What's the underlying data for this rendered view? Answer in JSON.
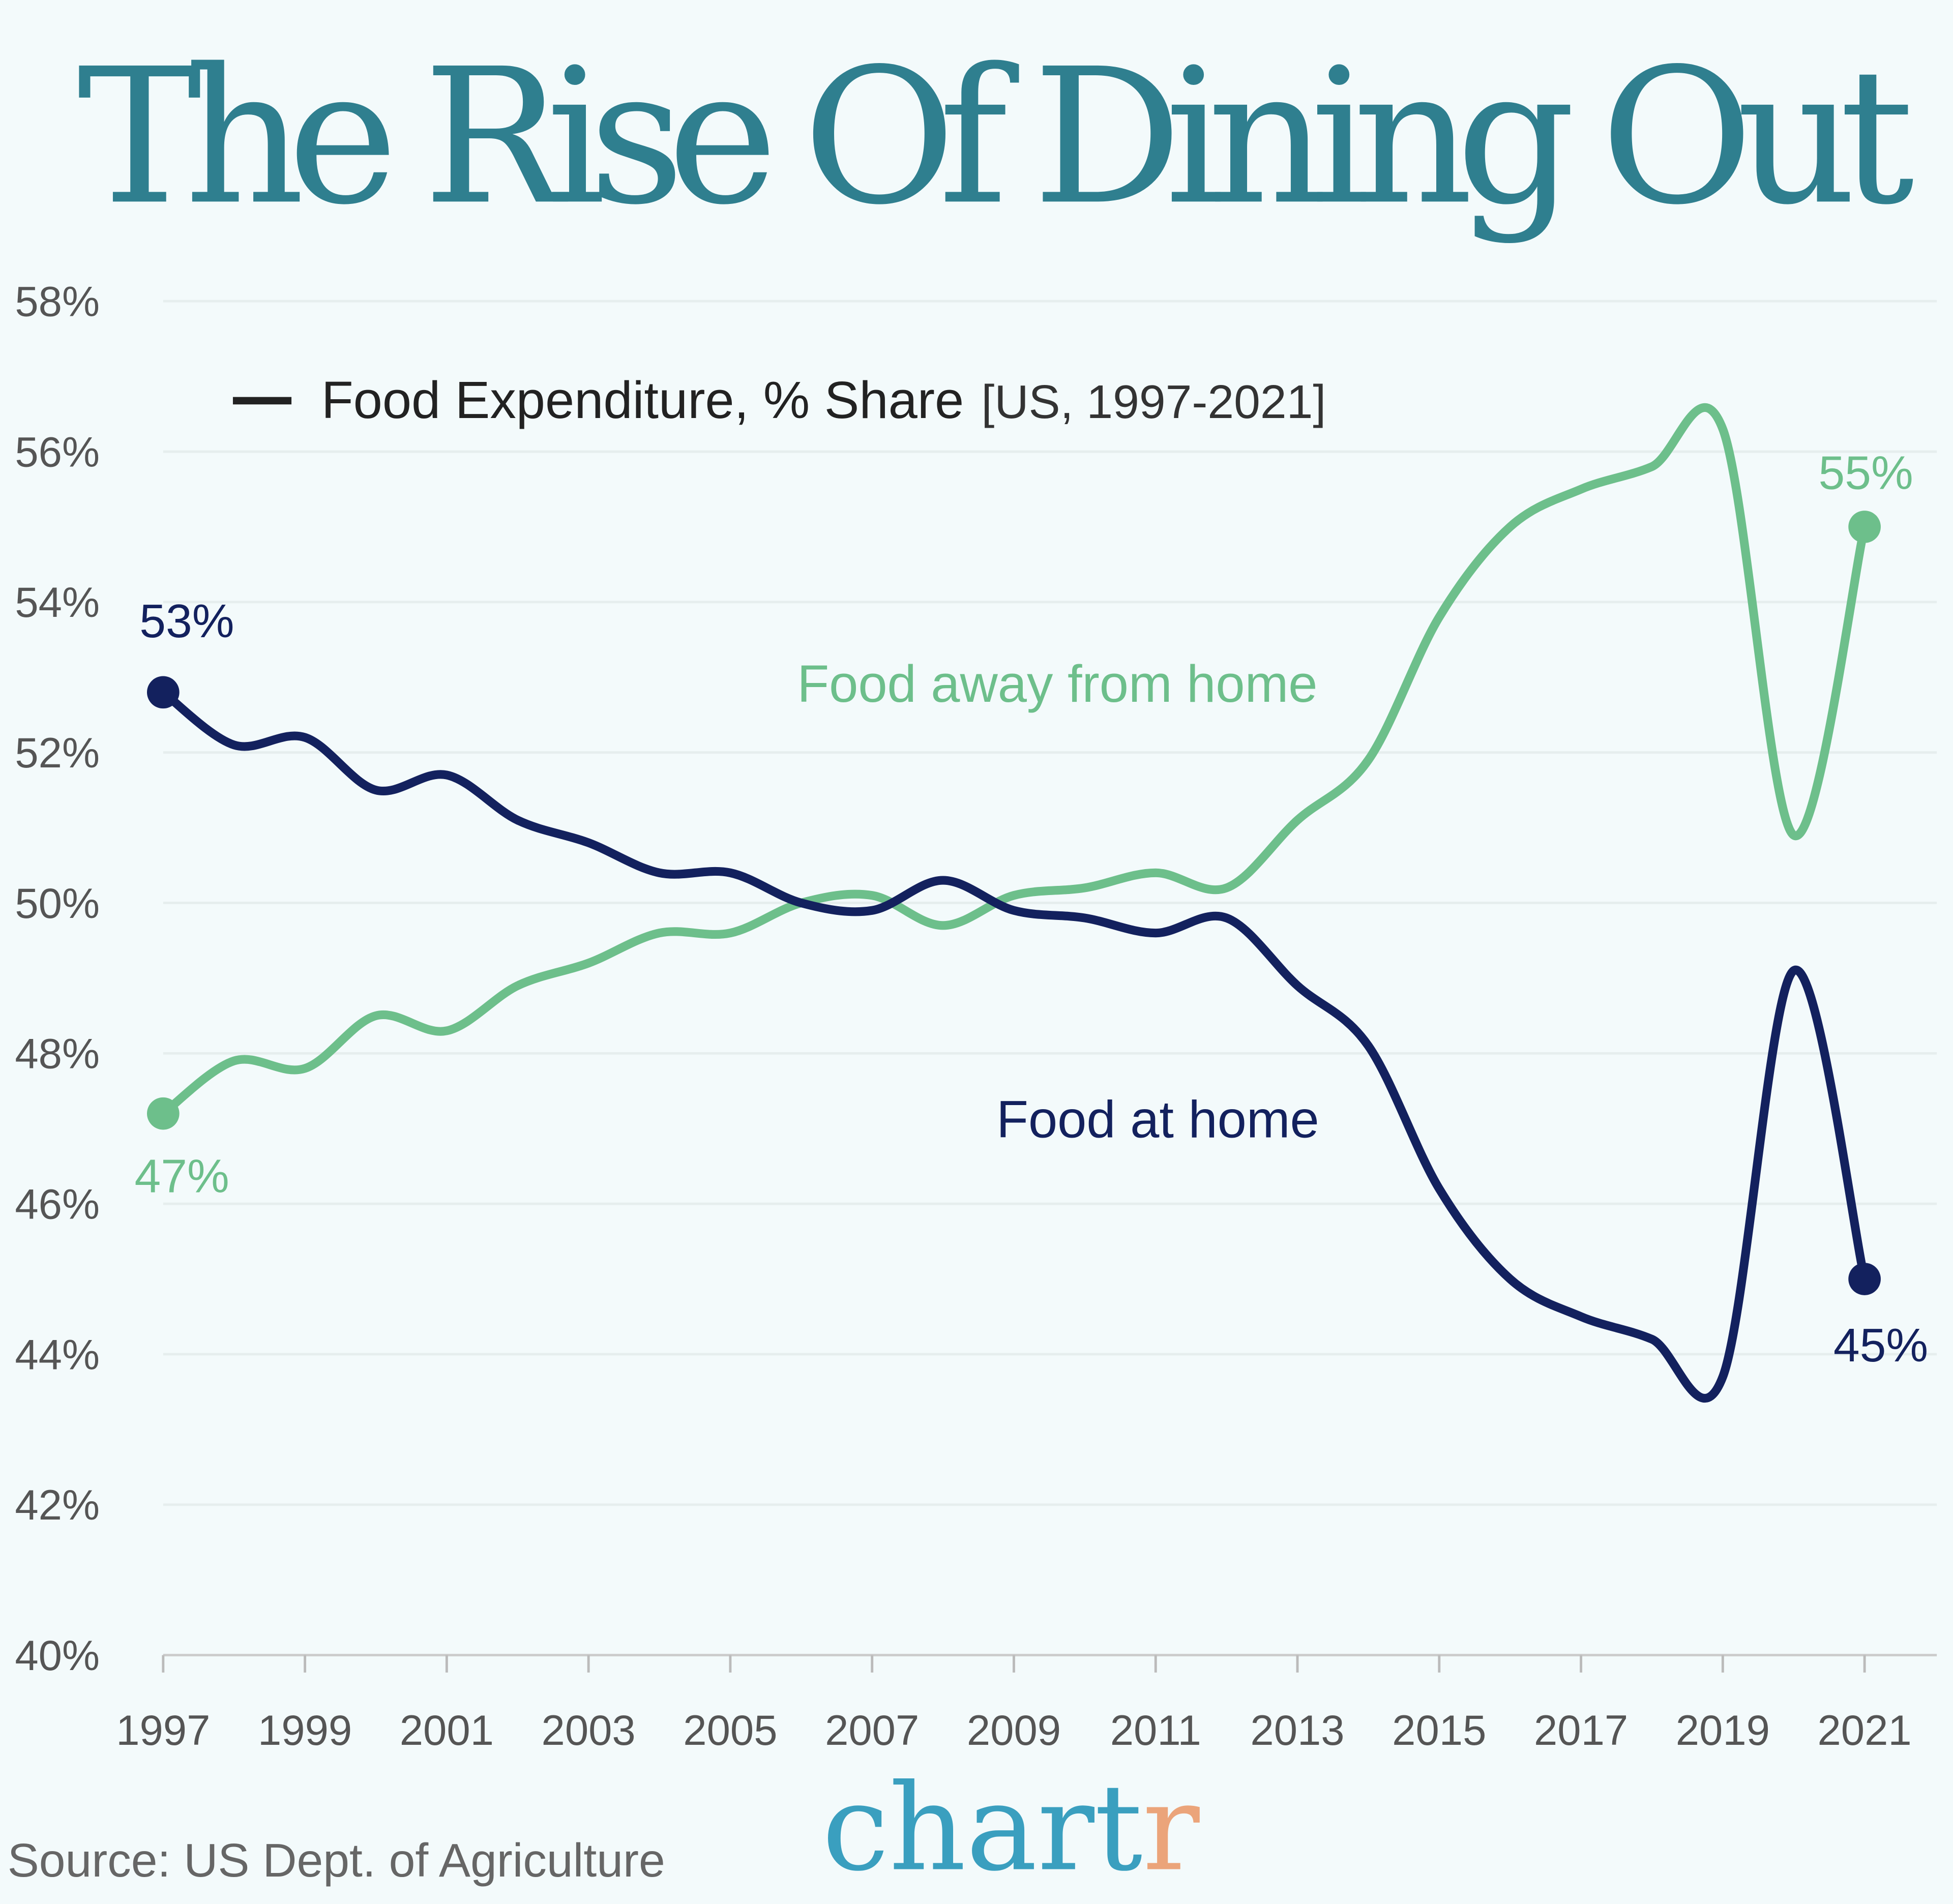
{
  "chart_data": {
    "type": "line",
    "title": "The Rise Of Dining Out",
    "legend": {
      "label": "Food Expenditure, % Share",
      "suffix": "[US, 1997-2021]"
    },
    "x": [
      1997,
      1998,
      1999,
      2000,
      2001,
      2002,
      2003,
      2004,
      2005,
      2006,
      2007,
      2008,
      2009,
      2010,
      2011,
      2012,
      2013,
      2014,
      2015,
      2016,
      2017,
      2018,
      2019,
      2020,
      2021
    ],
    "x_ticks": [
      "1997",
      "1999",
      "2001",
      "2003",
      "2005",
      "2007",
      "2009",
      "2011",
      "2013",
      "2015",
      "2017",
      "2019",
      "2021"
    ],
    "y_ticks": [
      "58%",
      "56%",
      "54%",
      "52%",
      "50%",
      "48%",
      "46%",
      "44%",
      "42%",
      "40%"
    ],
    "ylim": [
      40,
      58
    ],
    "grid": true,
    "series": [
      {
        "name": "Food away from home",
        "color": "#6dbf8b",
        "values": [
          47.2,
          47.9,
          47.8,
          48.5,
          48.3,
          48.9,
          49.2,
          49.6,
          49.6,
          50.0,
          50.1,
          49.7,
          50.1,
          50.2,
          50.4,
          50.2,
          51.1,
          51.9,
          53.8,
          55.0,
          55.5,
          55.8,
          56.3,
          50.9,
          55.0
        ],
        "start_label": "47%",
        "end_label": "55%"
      },
      {
        "name": "Food at home",
        "color": "#13215e",
        "values": [
          52.8,
          52.1,
          52.2,
          51.5,
          51.7,
          51.1,
          50.8,
          50.4,
          50.4,
          50.0,
          49.9,
          50.3,
          49.9,
          49.8,
          49.6,
          49.8,
          48.9,
          48.1,
          46.2,
          45.0,
          44.5,
          44.2,
          43.7,
          49.1,
          45.0
        ],
        "start_label": "53%",
        "end_label": "45%"
      }
    ],
    "source": "Source: US Dept. of Agriculture"
  },
  "logo": {
    "main": "chart",
    "accent": "r",
    "main_color": "#3a9fbf",
    "accent_color": "#eba47a"
  },
  "colors": {
    "title": "#2f7f8f",
    "background": "#f3fafb"
  }
}
